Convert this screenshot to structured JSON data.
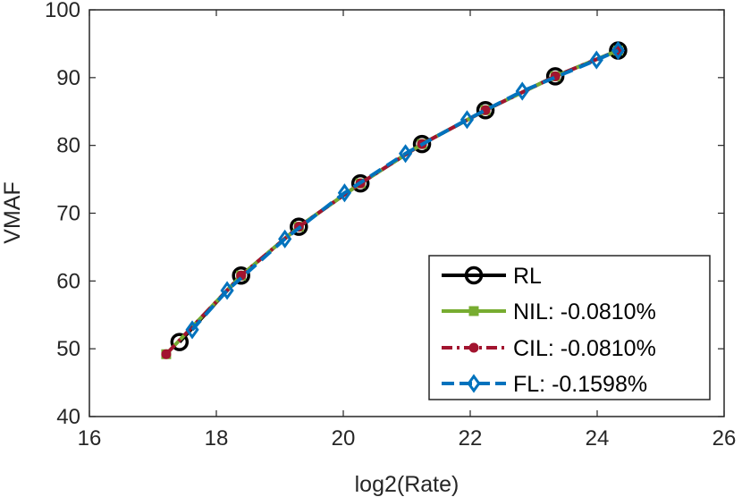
{
  "chart_data": {
    "type": "line",
    "title": "",
    "xlabel": "log2(Rate)",
    "ylabel": "VMAF",
    "xlim": [
      16,
      26
    ],
    "ylim": [
      40,
      100
    ],
    "xticks": [
      16,
      18,
      20,
      22,
      24,
      26
    ],
    "yticks": [
      40,
      50,
      60,
      70,
      80,
      90,
      100
    ],
    "xtick_labels": [
      "16",
      "18",
      "20",
      "22",
      "24",
      "26"
    ],
    "ytick_labels": [
      "40",
      "50",
      "60",
      "70",
      "80",
      "90",
      "100"
    ],
    "grid": false,
    "legend_position": "bottom-right",
    "series": [
      {
        "name": "RL",
        "legend_label": "RL",
        "color": "#000000",
        "line_style": "solid",
        "marker": "circle-open",
        "x": [
          17.42,
          18.39,
          19.3,
          20.27,
          21.24,
          22.24,
          23.34,
          24.33
        ],
        "y": [
          51.0,
          60.8,
          68.0,
          74.4,
          80.2,
          85.2,
          90.2,
          94.0
        ]
      },
      {
        "name": "NIL",
        "legend_label": "NIL: -0.0810%",
        "color": "#77AC30",
        "line_style": "solid",
        "marker": "square-filled",
        "x": [
          17.21,
          18.39,
          19.3,
          20.27,
          21.24,
          22.24,
          23.34,
          24.33
        ],
        "y": [
          49.2,
          60.8,
          68.0,
          74.4,
          80.2,
          85.2,
          90.2,
          94.0
        ]
      },
      {
        "name": "CIL",
        "legend_label": "CIL: -0.0810%",
        "color": "#A2142F",
        "line_style": "dashdot",
        "marker": "circle-filled",
        "x": [
          17.21,
          18.39,
          19.3,
          20.27,
          21.24,
          22.24,
          23.34,
          24.33
        ],
        "y": [
          49.2,
          60.8,
          68.0,
          74.4,
          80.2,
          85.2,
          90.2,
          94.0
        ]
      },
      {
        "name": "FL",
        "legend_label": "FL: -0.1598%",
        "color": "#0072BD",
        "line_style": "dashed",
        "marker": "diamond-open",
        "x": [
          17.62,
          18.17,
          19.08,
          20.02,
          20.98,
          21.95,
          22.82,
          23.99,
          24.33
        ],
        "y": [
          52.8,
          58.6,
          66.2,
          73.0,
          78.8,
          83.8,
          88.0,
          92.6,
          94.0
        ]
      }
    ]
  }
}
